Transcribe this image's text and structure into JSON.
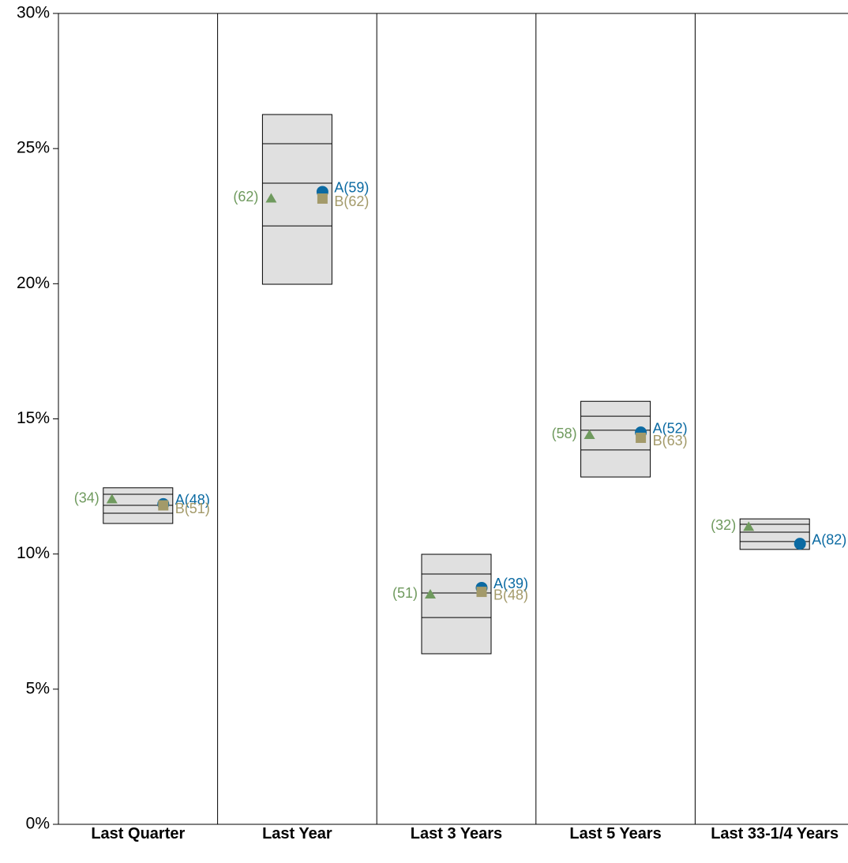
{
  "chart_data": {
    "type": "floating-box",
    "categories": [
      "Last Quarter",
      "Last Year",
      "Last 3 Years",
      "Last 5 Years",
      "Last 33-1/4 Years"
    ],
    "boxes": [
      [
        12.45,
        12.21,
        11.8,
        11.51,
        11.13
      ],
      [
        26.26,
        25.18,
        23.72,
        22.14,
        19.98
      ],
      [
        9.99,
        9.26,
        8.56,
        7.65,
        6.31
      ],
      [
        15.65,
        15.1,
        14.58,
        13.85,
        12.85
      ],
      [
        11.3,
        11.1,
        10.81,
        10.46,
        10.17
      ]
    ],
    "box_color": "#e0e0e0",
    "series": [
      {
        "marker": "triangle",
        "color": "#6f9a5e",
        "values": [
          12.02,
          23.15,
          8.5,
          14.4,
          11.0
        ],
        "labels": [
          "(34)",
          "(62)",
          "(51)",
          "(58)",
          "(32)"
        ]
      },
      {
        "marker": "circle",
        "color": "#0b6aa2",
        "values": [
          11.85,
          23.4,
          8.75,
          14.5,
          10.38
        ],
        "labels": [
          "A(48)",
          "A(59)",
          "A(39)",
          "A(52)",
          "A(82)"
        ]
      },
      {
        "marker": "square",
        "color": "#a39a6a",
        "values": [
          11.8,
          23.15,
          8.6,
          14.3,
          null
        ],
        "labels": [
          "B(51)",
          "B(62)",
          "B(48)",
          "B(63)",
          null
        ]
      }
    ],
    "ylim": [
      0,
      30
    ],
    "yticks": [
      {
        "value": 0,
        "label": "0%"
      },
      {
        "value": 5,
        "label": "5%"
      },
      {
        "value": 10,
        "label": "10%"
      },
      {
        "value": 15,
        "label": "15%"
      },
      {
        "value": 20,
        "label": "20%"
      },
      {
        "value": 25,
        "label": "25%"
      },
      {
        "value": 30,
        "label": "30%"
      }
    ]
  }
}
